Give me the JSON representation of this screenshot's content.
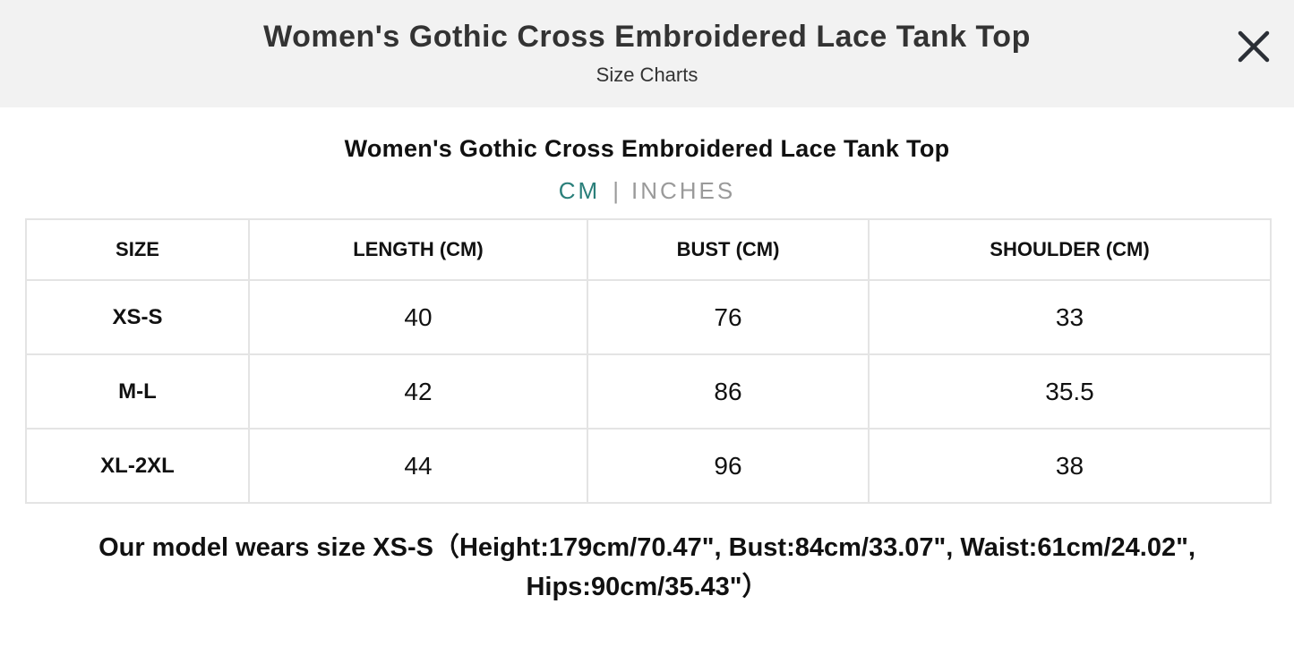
{
  "header": {
    "title": "Women's Gothic Cross Embroidered Lace Tank Top",
    "subtitle": "Size Charts",
    "close_icon": "close-icon"
  },
  "product_title": "Women's Gothic Cross Embroidered Lace Tank Top",
  "units": {
    "cm_label": "CM",
    "separator": "|",
    "inches_label": "INCHES",
    "selected": "CM",
    "active_color": "#2a7f7a",
    "inactive_color": "#9a9a9a"
  },
  "table": {
    "headers": [
      "SIZE",
      "LENGTH (CM)",
      "BUST (CM)",
      "SHOULDER (CM)"
    ],
    "rows": [
      [
        "XS-S",
        "40",
        "76",
        "33"
      ],
      [
        "M-L",
        "42",
        "86",
        "35.5"
      ],
      [
        "XL-2XL",
        "44",
        "96",
        "38"
      ]
    ]
  },
  "model_note": "Our model wears size XS-S（Height:179cm/70.47\", Bust:84cm/33.07\", Waist:61cm/24.02\", Hips:90cm/35.43\"）"
}
